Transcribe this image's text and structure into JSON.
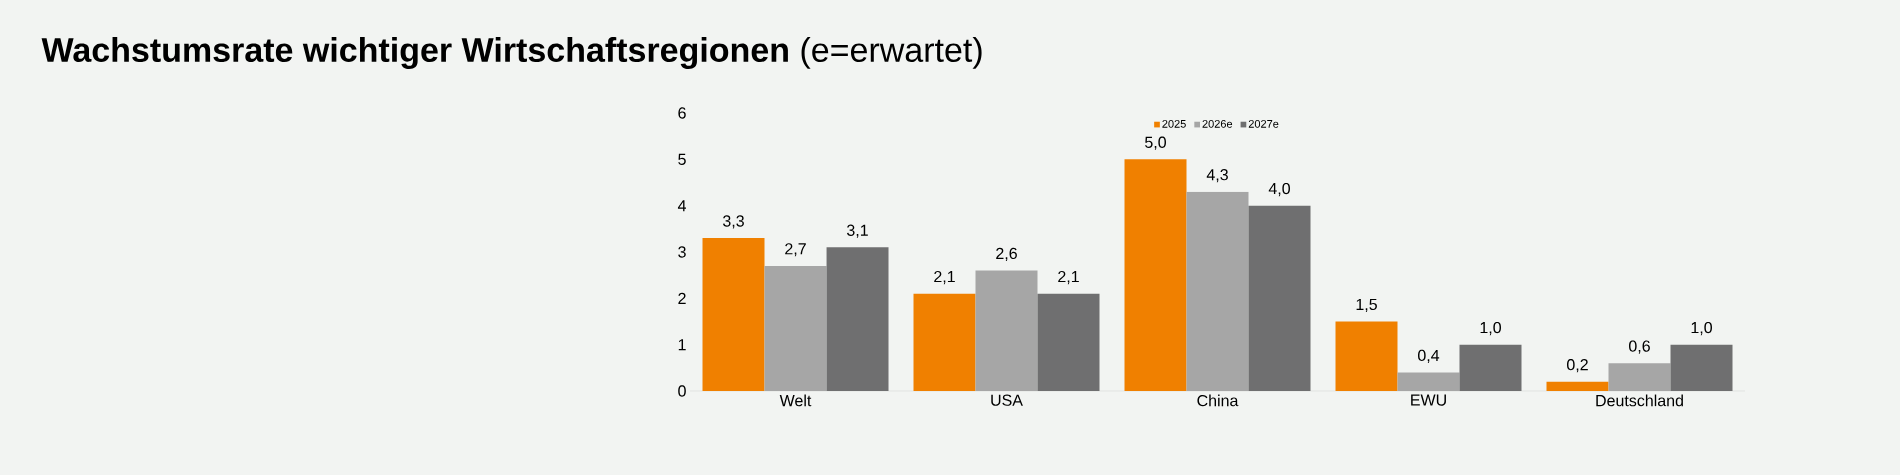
{
  "chart_data": {
    "type": "bar",
    "title": "**Wachstumsrate wichtiger Wirtschaftsregionen** (e=erwartet)",
    "categories": [
      "Welt",
      "USA",
      "China",
      "EWU",
      "Deutschland"
    ],
    "series": [
      {
        "name": "2025",
        "color": "#f08000",
        "values": [
          3.3,
          2.1,
          5.0,
          1.5,
          0.2
        ],
        "value_labels": [
          "3,3",
          "2,1",
          "5,0",
          "1,5",
          "0,2"
        ]
      },
      {
        "name": "2026e",
        "color": "#a6a6a6",
        "values": [
          2.7,
          2.6,
          4.3,
          0.4,
          0.6
        ],
        "value_labels": [
          "2,7",
          "2,6",
          "4,3",
          "0,4",
          "0,6"
        ]
      },
      {
        "name": "2027e",
        "color": "#6f6f70",
        "values": [
          3.1,
          2.1,
          4.0,
          1.0,
          1.0
        ],
        "value_labels": [
          "3,1",
          "2,1",
          "4,0",
          "1,0",
          "1,0"
        ]
      }
    ],
    "ylim": [
      0,
      6
    ],
    "yticks": [
      0,
      1,
      2,
      3,
      4,
      5,
      6
    ],
    "grid": false,
    "legend": "top"
  }
}
